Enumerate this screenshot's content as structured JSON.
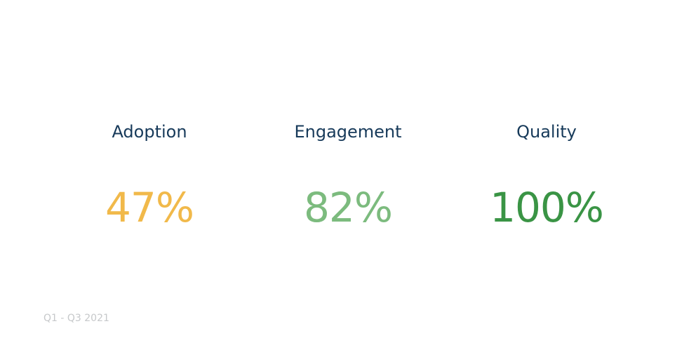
{
  "metrics": [
    {
      "label": "Adoption",
      "value": "47%",
      "color": "#f1b94a"
    },
    {
      "label": "Engagement",
      "value": "82%",
      "color": "#7cbb7e"
    },
    {
      "label": "Quality",
      "value": "100%",
      "color": "#3a9445"
    }
  ],
  "footer": "Q1 - Q3 2021"
}
